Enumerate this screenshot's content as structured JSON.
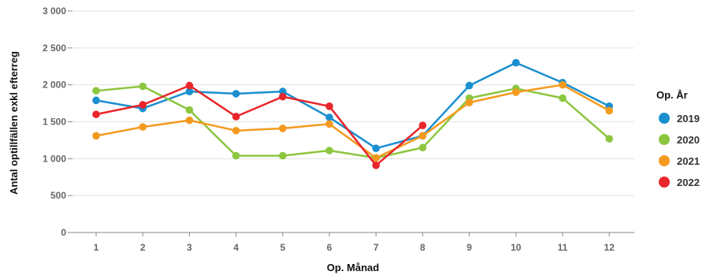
{
  "chart_data": {
    "type": "line",
    "xlabel": "Op. Månad",
    "ylabel": "Antal optillfällen exkl efterreg",
    "ylim": [
      0,
      3000
    ],
    "yticks": [
      0,
      500,
      1000,
      1500,
      2000,
      2500,
      3000
    ],
    "ytick_labels": [
      "0",
      "500",
      "1 000",
      "1 500",
      "2 000",
      "2 500",
      "3 000"
    ],
    "x": [
      "1",
      "2",
      "3",
      "4",
      "5",
      "6",
      "7",
      "8",
      "9",
      "10",
      "11",
      "12"
    ],
    "grid": "horizontal",
    "legend": {
      "title": "Op. År",
      "position": "right"
    },
    "series": [
      {
        "name": "2019",
        "color": "#1b8fcf",
        "values": [
          1790,
          1680,
          1910,
          1880,
          1910,
          1560,
          1140,
          1310,
          1990,
          2300,
          2030,
          1710
        ]
      },
      {
        "name": "2020",
        "color": "#8cc63f",
        "values": [
          1920,
          1980,
          1660,
          1040,
          1040,
          1110,
          1010,
          1150,
          1820,
          1950,
          1820,
          1270
        ]
      },
      {
        "name": "2021",
        "color": "#f39a1e",
        "values": [
          1310,
          1430,
          1520,
          1380,
          1410,
          1470,
          1010,
          1310,
          1760,
          1900,
          2000,
          1650
        ]
      },
      {
        "name": "2022",
        "color": "#e8262c",
        "values": [
          1600,
          1730,
          1990,
          1570,
          1840,
          1710,
          910,
          1450,
          null,
          null,
          null,
          null
        ]
      }
    ]
  }
}
